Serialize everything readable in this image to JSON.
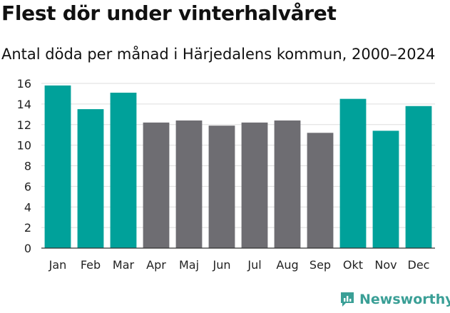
{
  "title": "Flest dör under vinterhalvåret",
  "subtitle": "Antal döda per månad i Härjedalens kommun, 2000–2024",
  "brand": {
    "name": "Newsworthy",
    "icon": "newsworthy-logo-icon"
  },
  "colors": {
    "highlight": "#00a19a",
    "normal": "#6e6d72",
    "grid": "#dedede",
    "axis": "#333333"
  },
  "chart_data": {
    "type": "bar",
    "title": "Flest dör under vinterhalvåret",
    "subtitle": "Antal döda per månad i Härjedalens kommun, 2000–2024",
    "xlabel": "",
    "ylabel": "",
    "categories": [
      "Jan",
      "Feb",
      "Mar",
      "Apr",
      "Maj",
      "Jun",
      "Jul",
      "Aug",
      "Sep",
      "Okt",
      "Nov",
      "Dec"
    ],
    "values": [
      15.8,
      13.5,
      15.1,
      12.2,
      12.4,
      11.9,
      12.2,
      12.4,
      11.2,
      14.5,
      11.4,
      13.8
    ],
    "highlighted": [
      true,
      true,
      true,
      false,
      false,
      false,
      false,
      false,
      false,
      true,
      true,
      true
    ],
    "ylim": [
      0,
      16
    ],
    "yticks": [
      0,
      2,
      4,
      6,
      8,
      10,
      12,
      14,
      16
    ],
    "grid": true,
    "legend": "none"
  }
}
